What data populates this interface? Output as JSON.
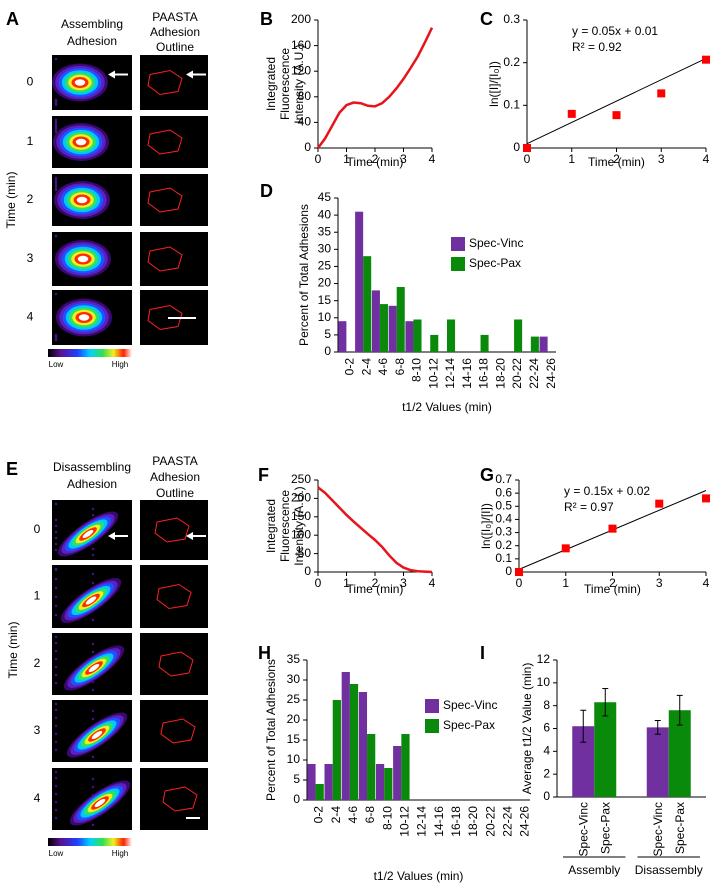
{
  "figure_panels": [
    {
      "label": "A",
      "column_headers": [
        [
          "Assembling",
          "Adhesion"
        ],
        [
          "PAASTA",
          "Adhesion",
          "Outline"
        ]
      ],
      "row_labels": [
        "0",
        "1",
        "2",
        "3",
        "4"
      ],
      "y_label": "Time (min)",
      "colorbar_labels": [
        "Low",
        "High"
      ]
    },
    {
      "label": "E",
      "column_headers": [
        [
          "Disassembling",
          "Adhesion"
        ],
        [
          "PAASTA",
          "Adhesion",
          "Outline"
        ]
      ],
      "row_labels": [
        "0",
        "1",
        "2",
        "3",
        "4"
      ],
      "y_label": "Time (min)",
      "colorbar_labels": [
        "Low",
        "High"
      ]
    }
  ],
  "chart_data": [
    {
      "label": "B",
      "type": "line",
      "x": [
        0,
        0.25,
        0.5,
        0.75,
        1,
        1.25,
        1.5,
        1.75,
        2,
        2.25,
        2.5,
        2.75,
        3,
        3.25,
        3.5,
        3.75,
        4
      ],
      "series": [
        {
          "color": "#e8141b",
          "values": [
            0,
            15,
            35,
            55,
            67,
            71,
            70,
            66,
            65,
            70,
            80,
            93,
            108,
            125,
            143,
            165,
            188
          ]
        }
      ],
      "xlabel": "Time (min)",
      "ylabel": [
        "Integrated",
        "Fluorescence",
        "Intensity (A.U.)"
      ],
      "xlim": [
        0,
        4
      ],
      "xticks": [
        0,
        1,
        2,
        3,
        4
      ],
      "ylim": [
        0,
        200
      ],
      "yticks": [
        0,
        40,
        80,
        120,
        160,
        200
      ]
    },
    {
      "label": "C",
      "type": "scatter",
      "x": [
        0,
        1,
        2,
        3,
        4
      ],
      "series": [
        {
          "color": "#ff0000",
          "values": [
            0,
            0.08,
            0.077,
            0.128,
            0.207
          ]
        }
      ],
      "trendline": {
        "slope": 0.05,
        "intercept": 0.01,
        "equation": "y = 0.05x + 0.01",
        "r2": "R² = 0.92"
      },
      "xlabel": "Time (min)",
      "ylabel": "ln([I]/[I₀])",
      "xlim": [
        0,
        4
      ],
      "xticks": [
        0,
        1,
        2,
        3,
        4
      ],
      "ylim": [
        0,
        0.3
      ],
      "yticks": [
        0,
        0.1,
        0.2,
        0.3
      ]
    },
    {
      "label": "D",
      "type": "bar",
      "categories": [
        "0-2",
        "2-4",
        "4-6",
        "6-8",
        "8-10",
        "10-12",
        "12-14",
        "14-16",
        "16-18",
        "18-20",
        "20-22",
        "22-24",
        "24-26"
      ],
      "series": [
        {
          "name": "Spec-Vinc",
          "color": "#7030a0",
          "values": [
            9,
            41,
            18,
            13.5,
            9,
            0,
            0,
            0,
            0,
            0,
            0,
            0,
            4.5
          ]
        },
        {
          "name": "Spec-Pax",
          "color": "#0a8a0a",
          "values": [
            0,
            28,
            14,
            19,
            9.5,
            5,
            9.5,
            0,
            5,
            0,
            9.5,
            4.5,
            0
          ]
        }
      ],
      "xlabel": "t1/2 Values (min)",
      "ylabel": "Percent of Total Adhesions",
      "legend": "right",
      "ylim": [
        0,
        45
      ],
      "yticks": [
        0,
        5,
        10,
        15,
        20,
        25,
        30,
        35,
        40,
        45
      ]
    },
    {
      "label": "F",
      "type": "line",
      "x": [
        0,
        0.25,
        0.5,
        0.75,
        1,
        1.25,
        1.5,
        1.75,
        2,
        2.25,
        2.5,
        2.75,
        3,
        3.25,
        3.5,
        3.75,
        4
      ],
      "series": [
        {
          "color": "#e8141b",
          "values": [
            230,
            215,
            195,
            175,
            155,
            137,
            120,
            103,
            87,
            68,
            45,
            25,
            12,
            5,
            2,
            1,
            0
          ]
        }
      ],
      "xlabel": "Time (min)",
      "ylabel": [
        "Integrated",
        "Fluorescence",
        "Intensity (A.U.)"
      ],
      "xlim": [
        0,
        4
      ],
      "xticks": [
        0,
        1,
        2,
        3,
        4
      ],
      "ylim": [
        0,
        250
      ],
      "yticks": [
        0,
        50,
        100,
        150,
        200,
        250
      ]
    },
    {
      "label": "G",
      "type": "scatter",
      "x": [
        0,
        1,
        2,
        3,
        4
      ],
      "series": [
        {
          "color": "#ff0000",
          "values": [
            0,
            0.18,
            0.33,
            0.52,
            0.56
          ]
        }
      ],
      "trendline": {
        "slope": 0.15,
        "intercept": 0.02,
        "equation": "y = 0.15x + 0.02",
        "r2": "R² = 0.97"
      },
      "xlabel": "Time (min)",
      "ylabel": "ln([I₀]/[I])",
      "xlim": [
        0,
        4
      ],
      "xticks": [
        0,
        1,
        2,
        3,
        4
      ],
      "ylim": [
        0,
        0.7
      ],
      "yticks": [
        0,
        0.1,
        0.2,
        0.3,
        0.4,
        0.5,
        0.6,
        0.7
      ]
    },
    {
      "label": "H",
      "type": "bar",
      "categories": [
        "0-2",
        "2-4",
        "4-6",
        "6-8",
        "8-10",
        "10-12",
        "12-14",
        "14-16",
        "16-18",
        "18-20",
        "20-22",
        "22-24",
        "24-26"
      ],
      "series": [
        {
          "name": "Spec-Vinc",
          "color": "#7030a0",
          "values": [
            9,
            9,
            32,
            27,
            9,
            13.5,
            0,
            0,
            0,
            0,
            0,
            0,
            0
          ]
        },
        {
          "name": "Spec-Pax",
          "color": "#0a8a0a",
          "values": [
            4,
            25,
            29,
            16.5,
            8,
            16.5,
            0,
            0,
            0,
            0,
            0,
            0,
            0
          ]
        }
      ],
      "xlabel": "t1/2 Values (min)",
      "ylabel": "Percent of Total Adhesions",
      "legend": "right",
      "ylim": [
        0,
        35
      ],
      "yticks": [
        0,
        5,
        10,
        15,
        20,
        25,
        30,
        35
      ]
    },
    {
      "label": "I",
      "type": "bar",
      "categories": [
        "Assembly",
        "Disassembly"
      ],
      "series": [
        {
          "name": "Spec-Vinc",
          "color": "#7030a0",
          "values": [
            6.2,
            6.1
          ],
          "errors": [
            1.4,
            0.6
          ]
        },
        {
          "name": "Spec-Pax",
          "color": "#0a8a0a",
          "values": [
            8.3,
            7.6
          ],
          "errors": [
            1.2,
            1.3
          ]
        }
      ],
      "ylabel": "Average t1/2 Value (min)",
      "legend": "under-bars",
      "ylim": [
        0,
        12
      ],
      "yticks": [
        0,
        2,
        4,
        6,
        8,
        10,
        12
      ]
    }
  ]
}
